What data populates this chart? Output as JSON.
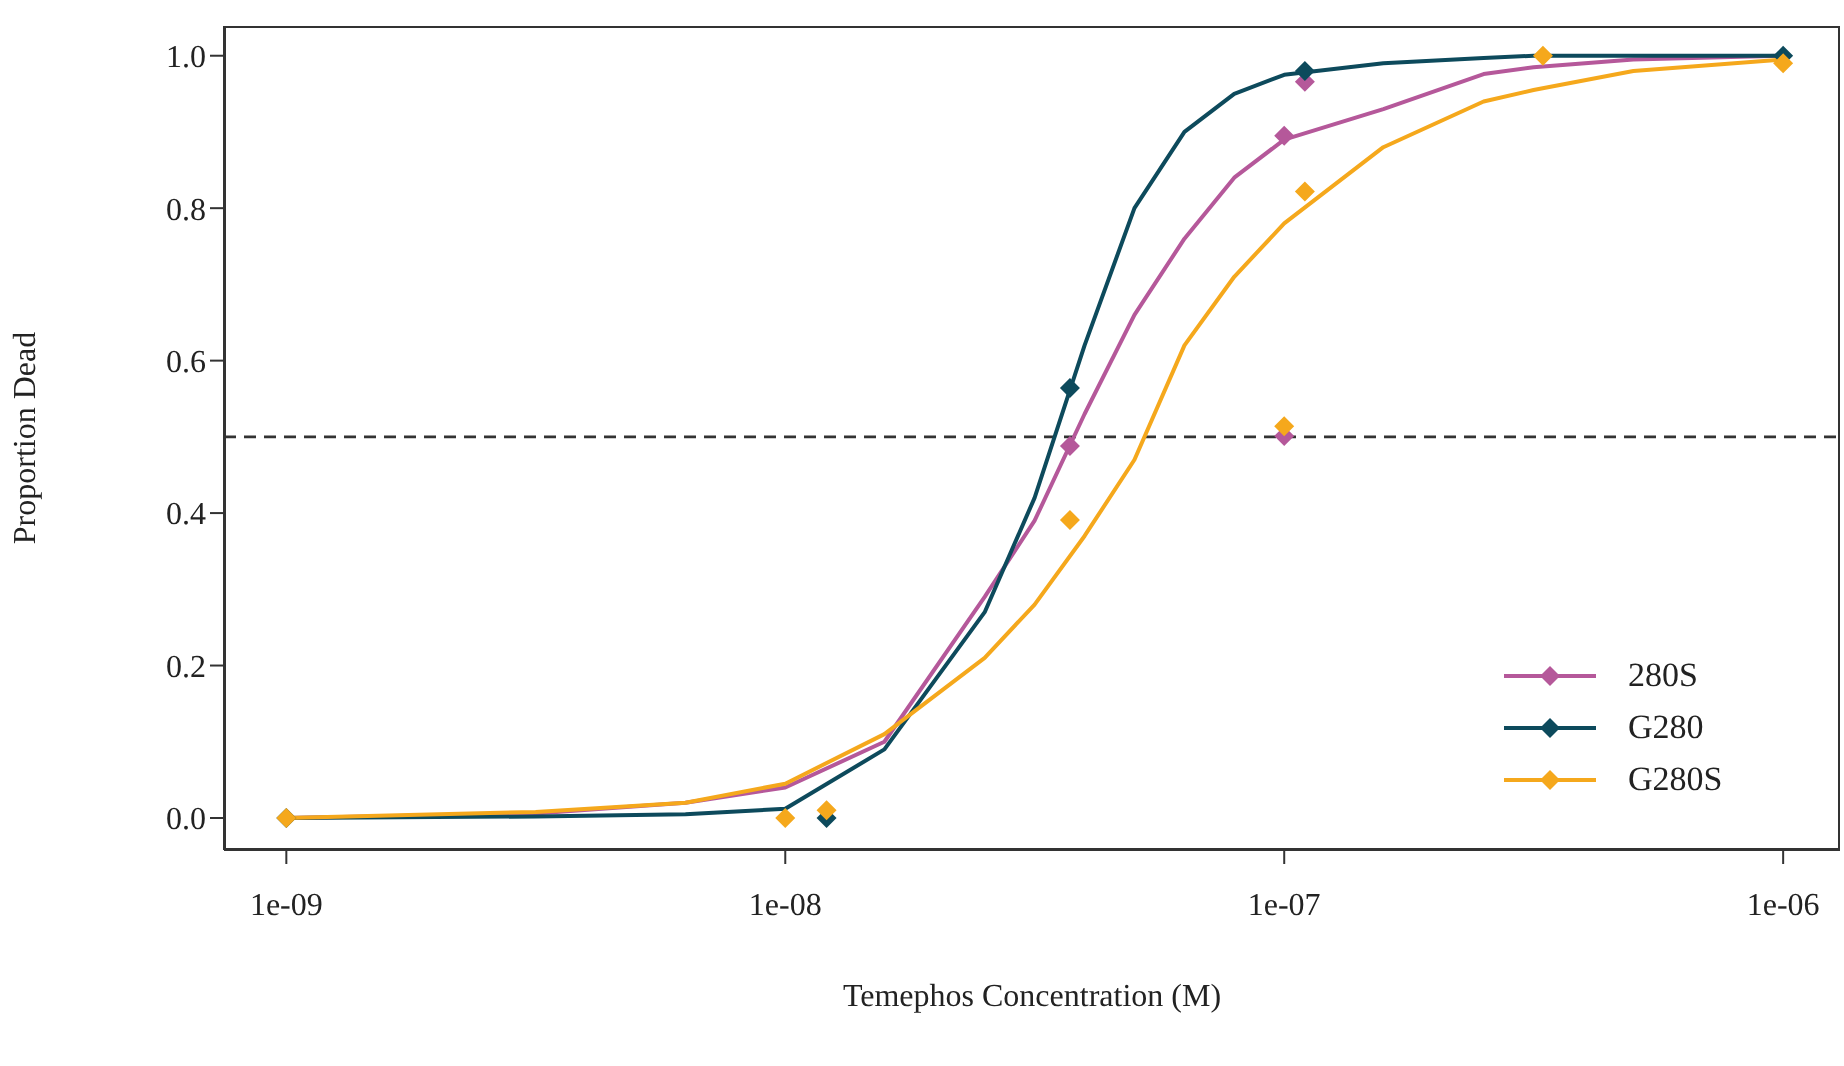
{
  "chart_data": {
    "type": "line",
    "xlabel": "Temephos Concentration (M)",
    "ylabel": "Proportion Dead",
    "log": "x",
    "grid": false,
    "legend": "bottom right",
    "xlim": [
      7.5e-10,
      1.3e-06
    ],
    "xticks": [
      {
        "value": 1e-09,
        "label": "1e-09"
      },
      {
        "value": 1e-08,
        "label": "1e-08"
      },
      {
        "value": 1e-07,
        "label": "1e-07"
      },
      {
        "value": 1e-06,
        "label": "1e-06"
      }
    ],
    "ylim": [
      -0.042,
      1.039
    ],
    "yticks": [
      {
        "value": 0,
        "label": "0.0"
      },
      {
        "value": 0.2,
        "label": "0.2"
      },
      {
        "value": 0.4,
        "label": "0.4"
      },
      {
        "value": 0.6,
        "label": "0.6"
      },
      {
        "value": 0.8,
        "label": "0.8"
      },
      {
        "value": 1,
        "label": "1.0"
      }
    ],
    "ref_lines": [
      {
        "axis": "y",
        "value": 0.5,
        "color": "#333333",
        "line_style": "dashed"
      }
    ],
    "series": [
      {
        "color": "#b5589a",
        "marker": "none",
        "x": [
          1e-09,
          3.16e-09,
          6.31e-09,
          1e-08,
          1.58e-08,
          2.51e-08,
          3.16e-08,
          3.98e-08,
          5.01e-08,
          6.31e-08,
          7.94e-08,
          1e-07,
          1.58e-07,
          2.51e-07,
          3.16e-07,
          5.01e-07,
          1e-06
        ],
        "values": [
          0,
          0.006,
          0.02,
          0.04,
          0.1,
          0.29,
          0.39,
          0.53,
          0.66,
          0.76,
          0.84,
          0.89,
          0.93,
          0.976,
          0.985,
          0.995,
          1
        ]
      },
      {
        "color": "#0d4a5c",
        "marker": "none",
        "x": [
          1e-09,
          3.16e-09,
          6.31e-09,
          1e-08,
          1.58e-08,
          2.51e-08,
          3.16e-08,
          3.98e-08,
          5.01e-08,
          6.31e-08,
          7.94e-08,
          1e-07,
          1.58e-07,
          2.51e-07,
          3.16e-07,
          5.01e-07,
          1e-06
        ],
        "values": [
          0,
          0.002,
          0.005,
          0.012,
          0.09,
          0.27,
          0.42,
          0.62,
          0.8,
          0.9,
          0.95,
          0.975,
          0.99,
          0.997,
          1,
          1,
          1
        ]
      },
      {
        "color": "#f5a81c",
        "marker": "none",
        "x": [
          1e-09,
          3.16e-09,
          6.31e-09,
          1e-08,
          1.58e-08,
          2.51e-08,
          3.16e-08,
          3.98e-08,
          5.01e-08,
          6.31e-08,
          7.94e-08,
          1e-07,
          1.58e-07,
          2.51e-07,
          3.16e-07,
          5.01e-07,
          1e-06
        ],
        "values": [
          0,
          0.008,
          0.02,
          0.045,
          0.11,
          0.21,
          0.28,
          0.37,
          0.47,
          0.62,
          0.71,
          0.78,
          0.88,
          0.94,
          0.955,
          0.98,
          0.995
        ]
      },
      {
        "type": "scatter",
        "name": "280S",
        "color": "#b5589a",
        "marker": "diamond",
        "x": [
          3.72e-08,
          1e-07,
          1e-07,
          1.1e-07
        ],
        "values": [
          0.488,
          0.501,
          0.895,
          0.966
        ]
      },
      {
        "type": "scatter",
        "name": "G280",
        "color": "#0d4a5c",
        "marker": "diamond",
        "x": [
          1e-09,
          1.21e-08,
          3.72e-08,
          1.1e-07,
          1e-06
        ],
        "values": [
          0,
          0,
          0.564,
          0.98,
          1
        ]
      },
      {
        "type": "scatter",
        "name": "G280S",
        "color": "#f5a81c",
        "marker": "diamond",
        "x": [
          1e-09,
          1e-08,
          1.21e-08,
          3.72e-08,
          1e-07,
          1.1e-07,
          3.3e-07,
          1e-06
        ],
        "values": [
          0,
          0,
          0.01,
          0.391,
          0.514,
          0.822,
          1,
          0.99
        ]
      }
    ]
  }
}
